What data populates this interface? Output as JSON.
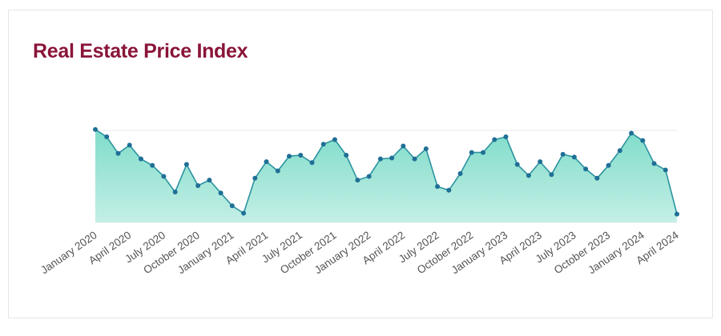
{
  "title": "Real Estate Price Index",
  "colors": {
    "title": "#8a1538",
    "line": "#2a93a0",
    "marker": "#1f6f96",
    "fill_top": "#7fdcc9",
    "fill_bottom": "#c4efe6",
    "gridline": "#e8e8e8"
  },
  "chart_data": {
    "type": "area",
    "title": "Real Estate Price Index",
    "xlabel": "",
    "ylabel": "",
    "ylim": [
      0,
      100
    ],
    "grid": false,
    "legend": "none",
    "x": [
      "Jan 2020",
      "Feb 2020",
      "Mar 2020",
      "Apr 2020",
      "May 2020",
      "Jun 2020",
      "Jul 2020",
      "Aug 2020",
      "Sep 2020",
      "Oct 2020",
      "Nov 2020",
      "Dec 2020",
      "Jan 2021",
      "Feb 2021",
      "Mar 2021",
      "Apr 2021",
      "May 2021",
      "Jun 2021",
      "Jul 2021",
      "Aug 2021",
      "Sep 2021",
      "Oct 2021",
      "Nov 2021",
      "Dec 2021",
      "Jan 2022",
      "Feb 2022",
      "Mar 2022",
      "Apr 2022",
      "May 2022",
      "Jun 2022",
      "Jul 2022",
      "Aug 2022",
      "Sep 2022",
      "Oct 2022",
      "Nov 2022",
      "Dec 2022",
      "Jan 2023",
      "Feb 2023",
      "Mar 2023",
      "Apr 2023",
      "May 2023",
      "Jun 2023",
      "Jul 2023",
      "Aug 2023",
      "Sep 2023",
      "Oct 2023",
      "Nov 2023",
      "Dec 2023",
      "Jan 2024",
      "Feb 2024",
      "Mar 2024",
      "Apr 2024"
    ],
    "values": [
      101,
      93,
      75,
      84,
      69,
      62,
      50,
      33,
      63,
      40,
      46,
      32,
      18,
      10,
      48,
      66,
      56,
      72,
      73,
      65,
      85,
      90,
      73,
      46,
      50,
      69,
      70,
      83,
      69,
      80,
      39,
      35,
      53,
      76,
      76,
      90,
      93,
      63,
      51,
      66,
      52,
      74,
      71,
      58,
      48,
      62,
      78,
      97,
      89,
      64,
      57,
      9
    ],
    "tick_labels": [
      "January 2020",
      "April 2020",
      "July 2020",
      "October 2020",
      "January 2021",
      "April 2021",
      "July 2021",
      "October 2021",
      "January 2022",
      "April 2022",
      "July 2022",
      "October 2022",
      "January 2023",
      "April 2023",
      "July 2023",
      "October 2023",
      "January 2024",
      "April 2024"
    ],
    "tick_every": 3
  }
}
